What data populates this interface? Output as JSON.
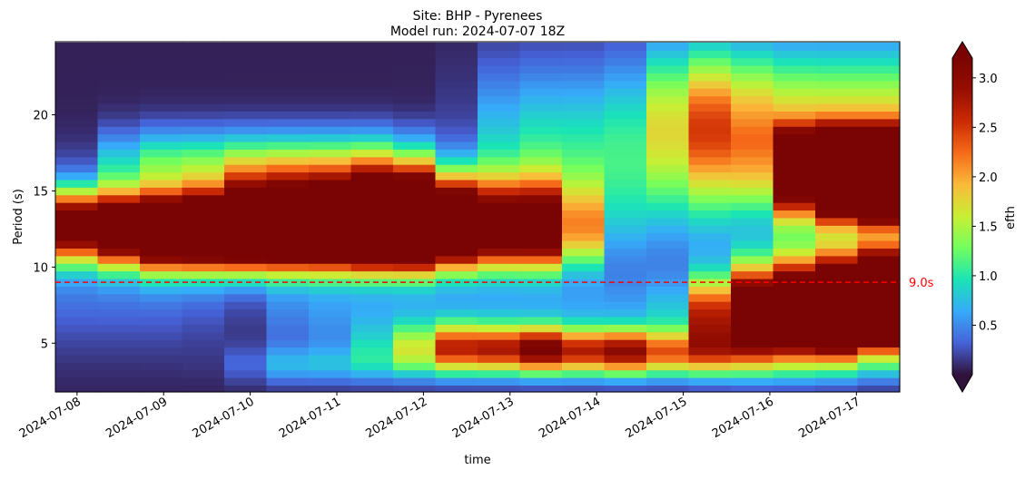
{
  "chart_data": {
    "type": "heatmap",
    "title": "Site: BHP - Pyrenees",
    "subtitle": "Model run: 2024-07-07 18Z",
    "xlabel": "time",
    "ylabel": "Period (s)",
    "x_start": "2024-07-07T18:00",
    "x_end": "2024-07-17T12:00",
    "x_ticks": [
      "2024-07-08",
      "2024-07-09",
      "2024-07-10",
      "2024-07-11",
      "2024-07-12",
      "2024-07-13",
      "2024-07-14",
      "2024-07-15",
      "2024-07-16",
      "2024-07-17"
    ],
    "ylim": [
      1.8,
      24.8
    ],
    "y_ticks": [
      5,
      10,
      15,
      20
    ],
    "colormap": "turbo",
    "colorbar": {
      "label": "efth",
      "vmin": 0.0,
      "vmax": 3.2,
      "ticks": [
        "0.5",
        "1.0",
        "1.5",
        "2.0",
        "2.5",
        "3.0"
      ],
      "extend": "both"
    },
    "reference_line": {
      "y": 9.0,
      "label": "9.0s",
      "color": "#ff0000",
      "style": "dashed"
    },
    "features": [
      {
        "t0": 0.0,
        "t1": 3.2,
        "period": 12.8,
        "dper": 1.6,
        "amplitude": 3.5
      },
      {
        "t0": 2.5,
        "t1": 11.5,
        "period": 11.8,
        "dper": 1.5,
        "amplitude": 2.0
      },
      {
        "t0": 2.2,
        "t1": 7.8,
        "period": 16.8,
        "dper": 1.6,
        "amplitude": 1.1
      },
      {
        "t0": 5.0,
        "t1": 8.5,
        "period": 13.2,
        "dper": 2.0,
        "amplitude": 4.2
      },
      {
        "t0": 8.0,
        "t1": 11.5,
        "period": 13.6,
        "dper": 1.8,
        "amplitude": 2.0
      },
      {
        "t0": 11.0,
        "t1": 15.5,
        "period": 17.0,
        "dper": 4.2,
        "amplitude": 1.0
      },
      {
        "t0": 15.5,
        "t1": 21.0,
        "period": 19.0,
        "dper": 3.0,
        "amplitude": 1.2
      },
      {
        "t0": 18.0,
        "t1": 21.0,
        "period": 15.8,
        "dper": 2.0,
        "amplitude": 3.8
      },
      {
        "t0": 19.5,
        "t1": 21.0,
        "period": 14.5,
        "dper": 1.2,
        "amplitude": 2.5
      },
      {
        "t0": 18.3,
        "t1": 20.5,
        "period": 18.4,
        "dper": 0.7,
        "amplitude": 1.4
      },
      {
        "t0": 15.0,
        "t1": 21.0,
        "period": 22.0,
        "dper": 3.0,
        "amplitude": 0.55
      },
      {
        "t0": 0.0,
        "t1": 3.0,
        "period": 9.0,
        "dper": 3.0,
        "amplitude": 0.35
      },
      {
        "t0": 6.0,
        "t1": 20.0,
        "period": 7.0,
        "dper": 1.8,
        "amplitude": 0.45
      },
      {
        "t0": 8.1,
        "t1": 9.5,
        "period": 5.0,
        "dper": 1.2,
        "amplitude": 0.55
      },
      {
        "t0": 9.6,
        "t1": 11.4,
        "period": 4.8,
        "dper": 1.0,
        "amplitude": 1.6
      },
      {
        "t0": 11.6,
        "t1": 13.4,
        "period": 4.6,
        "dper": 1.0,
        "amplitude": 1.1
      },
      {
        "t0": 13.6,
        "t1": 15.4,
        "period": 4.6,
        "dper": 1.0,
        "amplitude": 1.3
      },
      {
        "t0": 16.4,
        "t1": 17.9,
        "period": 6.8,
        "dper": 1.8,
        "amplitude": 4.0
      },
      {
        "t0": 17.4,
        "t1": 18.2,
        "period": 9.5,
        "dper": 1.8,
        "amplitude": 1.4
      },
      {
        "t0": 18.6,
        "t1": 19.9,
        "period": 6.5,
        "dper": 1.3,
        "amplitude": 3.3
      },
      {
        "t0": 19.6,
        "t1": 20.7,
        "period": 8.5,
        "dper": 1.8,
        "amplitude": 3.8
      },
      {
        "t0": 20.2,
        "t1": 20.7,
        "period": 10.5,
        "dper": 1.0,
        "amplitude": 1.2
      },
      {
        "t0": 21.0,
        "t1": 21.0,
        "period": 6.8,
        "dper": 1.4,
        "amplitude": 3.8
      },
      {
        "t0": 5.5,
        "t1": 21.0,
        "period": 3.6,
        "dper": 0.9,
        "amplitude": 0.6
      }
    ]
  }
}
